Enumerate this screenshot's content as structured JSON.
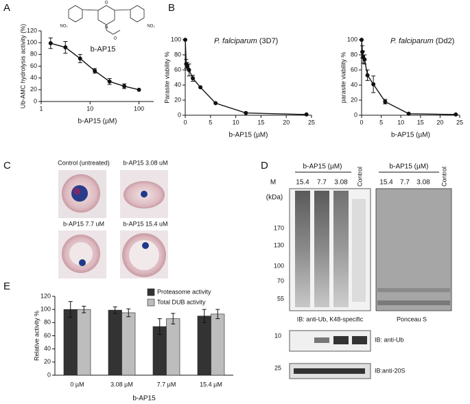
{
  "panel_labels": [
    "A",
    "B",
    "C",
    "D",
    "E"
  ],
  "molecule": {
    "name": "b-AP15",
    "atoms": [
      "O",
      "N",
      "O",
      "NO₂",
      "NO₂"
    ]
  },
  "chart_data": [
    {
      "type": "line",
      "xscale": "log",
      "x": [
        1.56,
        3.13,
        6.25,
        12.5,
        25,
        50,
        100
      ],
      "values": [
        99,
        92,
        73,
        52,
        34,
        26,
        20
      ],
      "errors": [
        9,
        10,
        7,
        4,
        5,
        4,
        0
      ],
      "xlim": [
        1,
        200
      ],
      "xticks": [
        1,
        10,
        100
      ],
      "ylim": [
        0,
        120
      ],
      "yticks": [
        0,
        20,
        40,
        60,
        80,
        100,
        120
      ],
      "xlabel": "b-AP15 (µM)",
      "ylabel": "Ub-AMC hydrolysis activity (%)",
      "color": "#111111"
    },
    {
      "type": "line",
      "species": "P. falciparum",
      "strain": "(3D7)",
      "x": [
        0,
        0.19,
        0.38,
        0.75,
        1.5,
        3,
        6,
        12,
        24
      ],
      "values": [
        100,
        68,
        65,
        60,
        49,
        37,
        16,
        3,
        1
      ],
      "errors": [
        0,
        6,
        5,
        8,
        4,
        0,
        0,
        0,
        0
      ],
      "xlim": [
        0,
        25
      ],
      "xticks": [
        0,
        5,
        10,
        15,
        20,
        25
      ],
      "ylim": [
        0,
        100
      ],
      "yticks": [
        0,
        20,
        40,
        60,
        80,
        100
      ],
      "xlabel": "b-AP15 (µM)",
      "ylabel": "Parasite viability %",
      "color": "#111111"
    },
    {
      "type": "line",
      "species": "P. falciparum",
      "strain": "(Dd2)",
      "x": [
        0,
        0.19,
        0.38,
        0.75,
        1.5,
        3,
        6,
        12,
        24
      ],
      "values": [
        100,
        84,
        77,
        74,
        53,
        41,
        18,
        2,
        1
      ],
      "errors": [
        0,
        8,
        8,
        6,
        7,
        11,
        3,
        0,
        0
      ],
      "xlim": [
        0,
        25
      ],
      "xticks": [
        0,
        5,
        10,
        15,
        20,
        25
      ],
      "ylim": [
        0,
        100
      ],
      "yticks": [
        0,
        20,
        40,
        60,
        80,
        100
      ],
      "xlabel": "b-AP15 (µM)",
      "ylabel": "parasite viability %",
      "color": "#111111"
    },
    {
      "type": "bar",
      "categories": [
        "0 µM",
        "3.08 µM",
        "7.7 µM",
        "15.4 µM"
      ],
      "series": [
        {
          "name": "Proteasome activity",
          "color": "#333333",
          "values": [
            100,
            99,
            74,
            90
          ],
          "errors": [
            12,
            5,
            12,
            10
          ]
        },
        {
          "name": "Total DUB activity",
          "color": "#bdbdbd",
          "values": [
            100,
            95,
            86,
            93
          ],
          "errors": [
            5,
            6,
            8,
            7
          ]
        }
      ],
      "ylim": [
        0,
        120
      ],
      "yticks": [
        0,
        20,
        40,
        60,
        80,
        100,
        120
      ],
      "xlabel": "b-AP15",
      "ylabel": "Relative activity %",
      "legend": "top-right"
    }
  ],
  "panel_c": {
    "captions": [
      "Control (untreated)",
      "b-AP15 3.08 uM",
      "b-AP15 7.7 uM",
      "b-AP15 15.4 uM"
    ]
  },
  "panel_d": {
    "group_headers": [
      "b-AP15 (µM)",
      "b-AP15 (µM)"
    ],
    "lanes": [
      "15.4",
      "7.7",
      "3.08",
      "Control"
    ],
    "lanes_ponceau": [
      "15.4",
      "7.7",
      "3.08",
      "Control"
    ],
    "marker_title": "M",
    "marker_unit": "(kDa)",
    "markers": [
      "170",
      "130",
      "100",
      "70",
      "55"
    ],
    "blot_labels": [
      "IB: anti-Ub,  K48-specific",
      "Ponceau S"
    ],
    "small_blots": [
      {
        "marker": "10",
        "label": "IB: anti-Ub"
      },
      {
        "marker": "25",
        "label": "IB:anti-20S"
      }
    ]
  }
}
